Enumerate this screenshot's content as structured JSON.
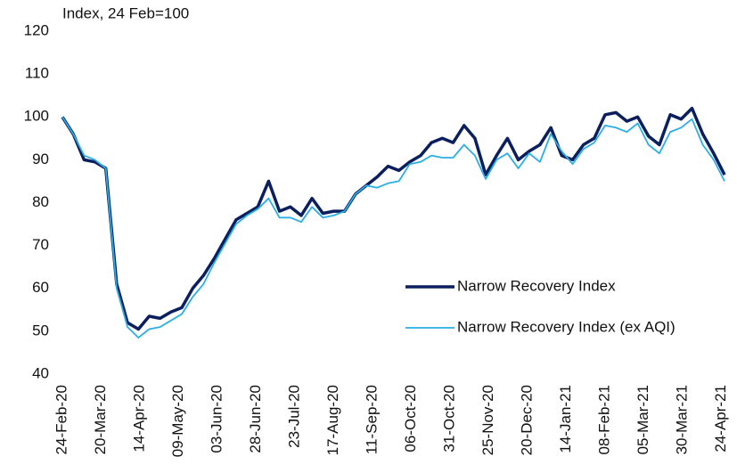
{
  "chart_data": {
    "type": "line",
    "ylabel": "Index, 24 Feb=100",
    "x": [
      "2020-02-24",
      "2020-03-02",
      "2020-03-09",
      "2020-03-16",
      "2020-03-23",
      "2020-03-30",
      "2020-04-06",
      "2020-04-13",
      "2020-04-20",
      "2020-04-27",
      "2020-05-04",
      "2020-05-11",
      "2020-05-18",
      "2020-05-25",
      "2020-06-01",
      "2020-06-08",
      "2020-06-15",
      "2020-06-22",
      "2020-06-29",
      "2020-07-06",
      "2020-07-13",
      "2020-07-20",
      "2020-07-27",
      "2020-08-03",
      "2020-08-10",
      "2020-08-17",
      "2020-08-24",
      "2020-08-31",
      "2020-09-07",
      "2020-09-14",
      "2020-09-21",
      "2020-09-28",
      "2020-10-05",
      "2020-10-12",
      "2020-10-19",
      "2020-10-26",
      "2020-11-02",
      "2020-11-09",
      "2020-11-16",
      "2020-11-23",
      "2020-11-30",
      "2020-12-07",
      "2020-12-14",
      "2020-12-21",
      "2020-12-28",
      "2021-01-04",
      "2021-01-11",
      "2021-01-18",
      "2021-01-25",
      "2021-02-01",
      "2021-02-08",
      "2021-02-15",
      "2021-02-22",
      "2021-03-01",
      "2021-03-08",
      "2021-03-15",
      "2021-03-22",
      "2021-03-29",
      "2021-04-05",
      "2021-04-12",
      "2021-04-19",
      "2021-04-26"
    ],
    "series": [
      {
        "name": "Narrow Recovery Index",
        "color": "#0b1f5e",
        "width": 3.5,
        "values": [
          100,
          96,
          90,
          89.5,
          88,
          61,
          52,
          50.5,
          53.5,
          53,
          54.5,
          55.5,
          60,
          63,
          67,
          71.5,
          76,
          77.5,
          79,
          85,
          78,
          79,
          77,
          81,
          77.5,
          78,
          78,
          82,
          84,
          86,
          88.5,
          87.5,
          89.5,
          91,
          94,
          95,
          94,
          98,
          95,
          86.5,
          91,
          95,
          90,
          92,
          93.5,
          97.5,
          91,
          90,
          93.5,
          95,
          100.5,
          101,
          99,
          100,
          95.5,
          93.5,
          100.5,
          99.5,
          102,
          96,
          91.5,
          86.5
        ]
      },
      {
        "name": "Narrow Recovery Index (ex AQI)",
        "color": "#2aaee6",
        "width": 1.8,
        "values": [
          100,
          96,
          91,
          90,
          88,
          60,
          51,
          48.5,
          50.5,
          51,
          52.5,
          54,
          58,
          61,
          66,
          70.5,
          75,
          77,
          78.5,
          81,
          76.5,
          76.5,
          75.5,
          79,
          76.5,
          77,
          78,
          82,
          84,
          83.5,
          84.5,
          85,
          89,
          89.5,
          91,
          90.5,
          90.5,
          93.5,
          91,
          85.5,
          90,
          91.5,
          88,
          91.5,
          89.5,
          96,
          92,
          89,
          92.5,
          94,
          98,
          97.5,
          96.5,
          98.5,
          93.5,
          91.5,
          96.5,
          97.5,
          99.5,
          93.5,
          90,
          85
        ]
      }
    ],
    "xlim": [
      "2020-02-24",
      "2021-04-26"
    ],
    "xticks": [
      {
        "value": "2020-02-24",
        "label": "24-Feb-20"
      },
      {
        "value": "2020-03-20",
        "label": "20-Mar-20"
      },
      {
        "value": "2020-04-14",
        "label": "14-Apr-20"
      },
      {
        "value": "2020-05-09",
        "label": "09-May-20"
      },
      {
        "value": "2020-06-03",
        "label": "03-Jun-20"
      },
      {
        "value": "2020-06-28",
        "label": "28-Jun-20"
      },
      {
        "value": "2020-07-23",
        "label": "23-Jul-20"
      },
      {
        "value": "2020-08-17",
        "label": "17-Aug-20"
      },
      {
        "value": "2020-09-11",
        "label": "11-Sep-20"
      },
      {
        "value": "2020-10-06",
        "label": "06-Oct-20"
      },
      {
        "value": "2020-10-31",
        "label": "31-Oct-20"
      },
      {
        "value": "2020-11-25",
        "label": "25-Nov-20"
      },
      {
        "value": "2020-12-20",
        "label": "20-Dec-20"
      },
      {
        "value": "2021-01-14",
        "label": "14-Jan-21"
      },
      {
        "value": "2021-02-08",
        "label": "08-Feb-21"
      },
      {
        "value": "2021-03-05",
        "label": "05-Mar-21"
      },
      {
        "value": "2021-03-30",
        "label": "30-Mar-21"
      },
      {
        "value": "2021-04-24",
        "label": "24-Apr-21"
      }
    ],
    "ylim": [
      40,
      120
    ],
    "yticks": [
      40,
      50,
      60,
      70,
      80,
      90,
      100,
      110,
      120
    ],
    "grid": false,
    "legend": "lower-right"
  }
}
